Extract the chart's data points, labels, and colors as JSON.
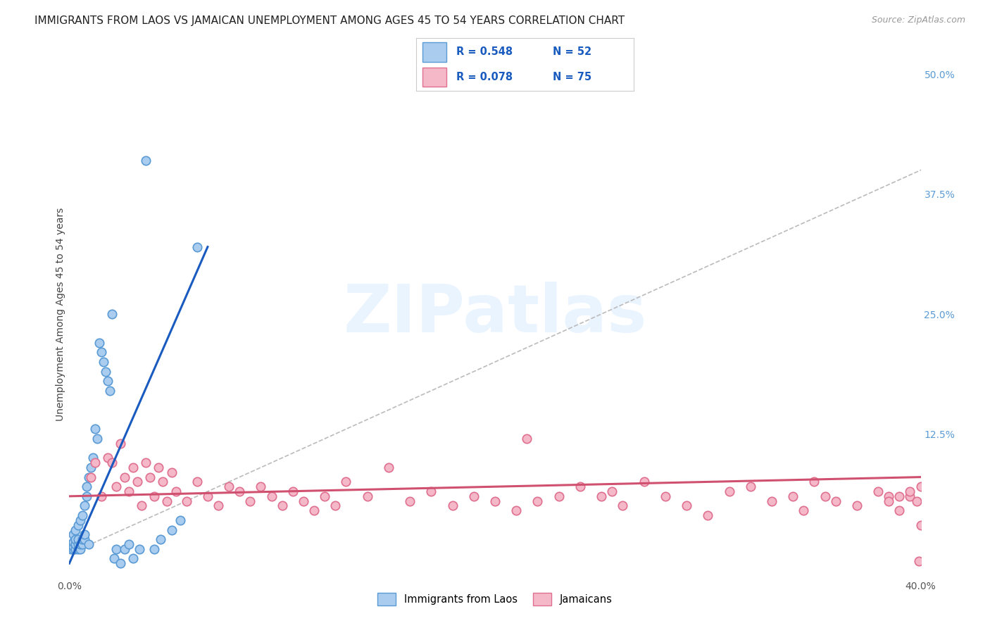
{
  "title": "IMMIGRANTS FROM LAOS VS JAMAICAN UNEMPLOYMENT AMONG AGES 45 TO 54 YEARS CORRELATION CHART",
  "source": "Source: ZipAtlas.com",
  "ylabel": "Unemployment Among Ages 45 to 54 years",
  "xlim": [
    0.0,
    0.4
  ],
  "ylim": [
    -0.025,
    0.525
  ],
  "xticks": [
    0.0,
    0.1,
    0.2,
    0.3,
    0.4
  ],
  "xticklabels": [
    "0.0%",
    "",
    "",
    "",
    "40.0%"
  ],
  "yticks_right": [
    0.0,
    0.125,
    0.25,
    0.375,
    0.5
  ],
  "ytick_right_labels": [
    "",
    "12.5%",
    "25.0%",
    "37.5%",
    "50.0%"
  ],
  "watermark_text": "ZIPatlas",
  "series1_color": "#aaccee",
  "series1_edge": "#5b9bd5",
  "series2_color": "#f4b8c8",
  "series2_edge": "#e07090",
  "trendline1_color": "#1a5bbf",
  "trendline2_color": "#d05070",
  "diagonal_color": "#bbbbbb",
  "R1": 0.548,
  "N1": 52,
  "R2": 0.078,
  "N2": 75,
  "series1_label": "Immigrants from Laos",
  "series2_label": "Jamaicans",
  "series1_x": [
    0.001,
    0.001,
    0.001,
    0.002,
    0.002,
    0.002,
    0.002,
    0.003,
    0.003,
    0.003,
    0.003,
    0.004,
    0.004,
    0.004,
    0.004,
    0.005,
    0.005,
    0.005,
    0.006,
    0.006,
    0.006,
    0.007,
    0.007,
    0.007,
    0.008,
    0.008,
    0.009,
    0.009,
    0.01,
    0.011,
    0.012,
    0.013,
    0.014,
    0.015,
    0.016,
    0.017,
    0.018,
    0.019,
    0.02,
    0.021,
    0.022,
    0.024,
    0.026,
    0.028,
    0.03,
    0.033,
    0.036,
    0.04,
    0.043,
    0.048,
    0.052,
    0.06
  ],
  "series1_y": [
    0.005,
    0.008,
    0.01,
    0.005,
    0.008,
    0.012,
    0.02,
    0.005,
    0.01,
    0.015,
    0.025,
    0.005,
    0.01,
    0.015,
    0.03,
    0.005,
    0.01,
    0.035,
    0.01,
    0.015,
    0.04,
    0.015,
    0.02,
    0.05,
    0.06,
    0.07,
    0.08,
    0.01,
    0.09,
    0.1,
    0.13,
    0.12,
    0.22,
    0.21,
    0.2,
    0.19,
    0.18,
    0.17,
    0.25,
    -0.005,
    0.005,
    -0.01,
    0.005,
    0.01,
    -0.005,
    0.005,
    0.41,
    0.005,
    0.015,
    0.025,
    0.035,
    0.32
  ],
  "series2_x": [
    0.01,
    0.012,
    0.015,
    0.018,
    0.02,
    0.022,
    0.024,
    0.026,
    0.028,
    0.03,
    0.032,
    0.034,
    0.036,
    0.038,
    0.04,
    0.042,
    0.044,
    0.046,
    0.048,
    0.05,
    0.055,
    0.06,
    0.065,
    0.07,
    0.075,
    0.08,
    0.085,
    0.09,
    0.095,
    0.1,
    0.105,
    0.11,
    0.115,
    0.12,
    0.125,
    0.13,
    0.14,
    0.15,
    0.16,
    0.17,
    0.18,
    0.19,
    0.2,
    0.21,
    0.215,
    0.22,
    0.23,
    0.24,
    0.25,
    0.255,
    0.26,
    0.27,
    0.28,
    0.29,
    0.3,
    0.31,
    0.32,
    0.33,
    0.34,
    0.345,
    0.35,
    0.355,
    0.36,
    0.37,
    0.38,
    0.385,
    0.39,
    0.395,
    0.398,
    0.399,
    0.4,
    0.4,
    0.395,
    0.39,
    0.385
  ],
  "series2_y": [
    0.08,
    0.095,
    0.06,
    0.1,
    0.095,
    0.07,
    0.115,
    0.08,
    0.065,
    0.09,
    0.075,
    0.05,
    0.095,
    0.08,
    0.06,
    0.09,
    0.075,
    0.055,
    0.085,
    0.065,
    0.055,
    0.075,
    0.06,
    0.05,
    0.07,
    0.065,
    0.055,
    0.07,
    0.06,
    0.05,
    0.065,
    0.055,
    0.045,
    0.06,
    0.05,
    0.075,
    0.06,
    0.09,
    0.055,
    0.065,
    0.05,
    0.06,
    0.055,
    0.045,
    0.12,
    0.055,
    0.06,
    0.07,
    0.06,
    0.065,
    0.05,
    0.075,
    0.06,
    0.05,
    0.04,
    0.065,
    0.07,
    0.055,
    0.06,
    0.045,
    0.075,
    0.06,
    0.055,
    0.05,
    0.065,
    0.06,
    0.045,
    0.06,
    0.055,
    -0.008,
    0.03,
    0.07,
    0.065,
    0.06,
    0.055
  ],
  "trendline1_x": [
    0.0,
    0.065
  ],
  "trendline1_y": [
    -0.01,
    0.32
  ],
  "trendline2_x": [
    0.0,
    0.4
  ],
  "trendline2_y": [
    0.06,
    0.08
  ],
  "background_color": "#ffffff",
  "grid_color": "#dddddd",
  "title_fontsize": 11,
  "axis_label_fontsize": 10,
  "tick_fontsize": 10
}
